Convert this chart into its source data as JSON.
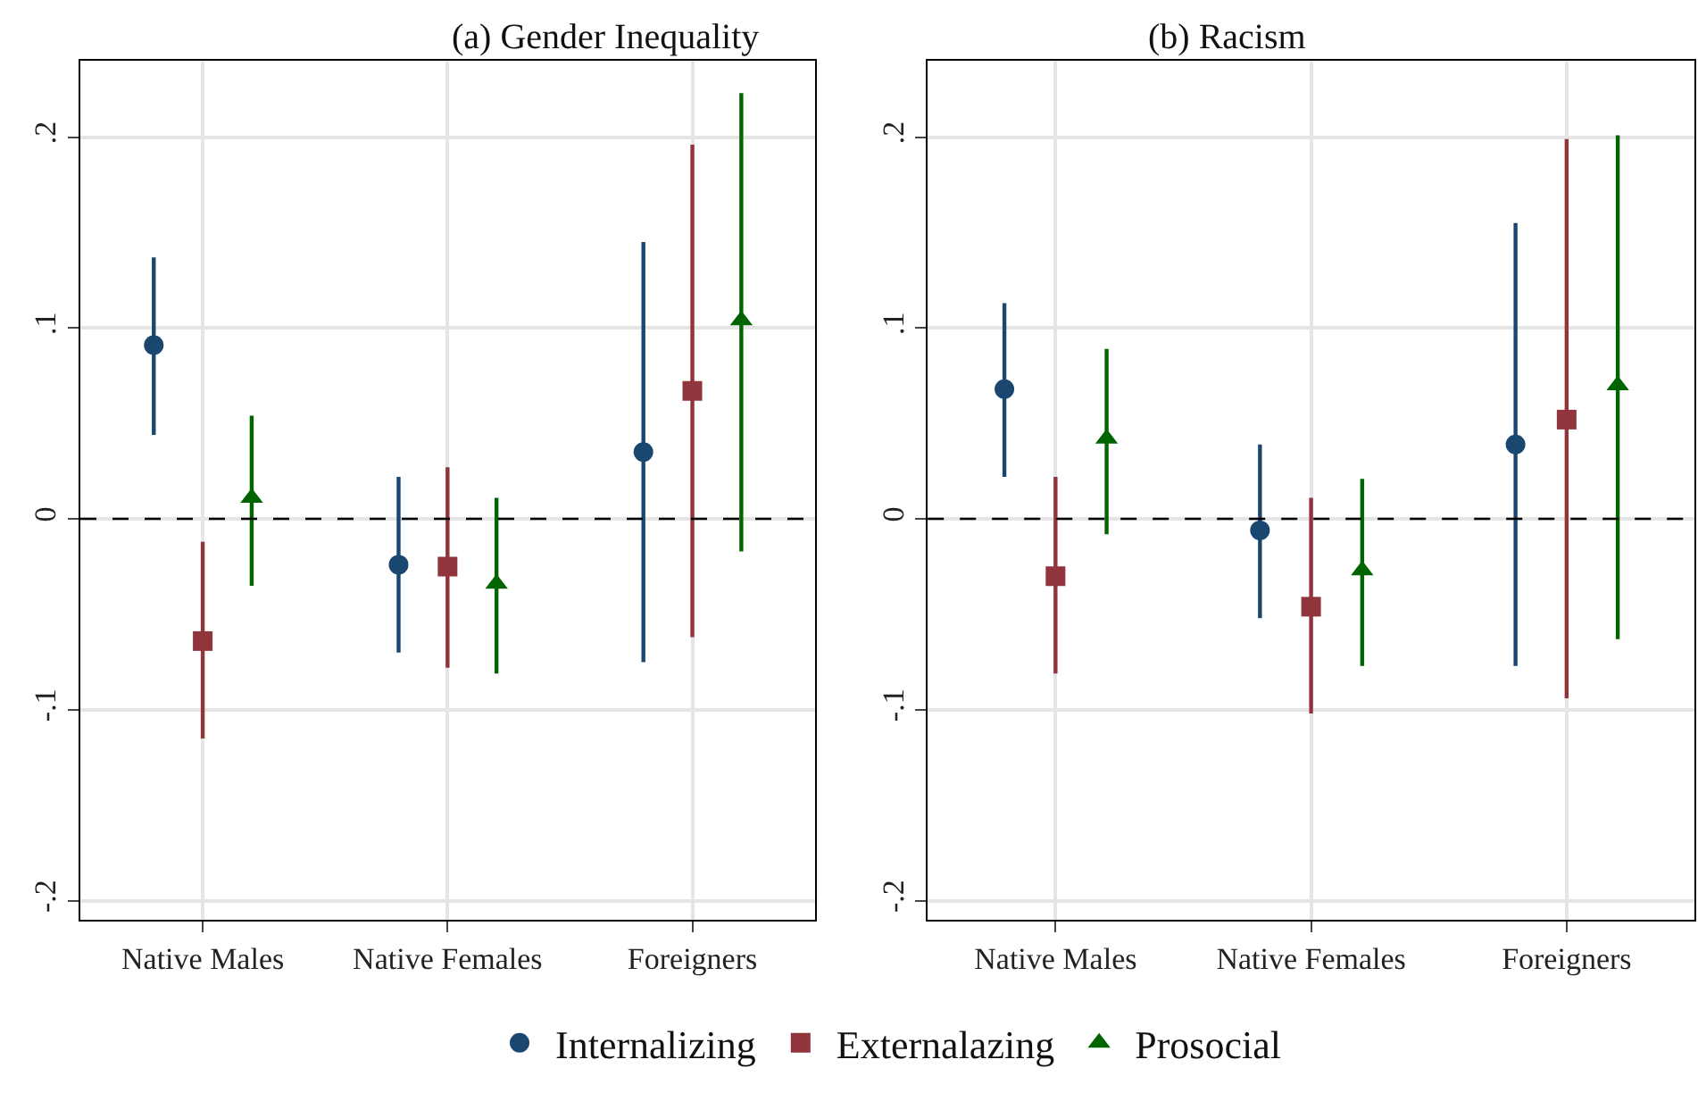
{
  "chart_data": [
    {
      "type": "scatter",
      "title": "(a) Gender Inequality",
      "categories": [
        "Native Males",
        "Native Females",
        "Foreigners"
      ],
      "series": [
        {
          "name": "Internalizing",
          "color": "#1a476f",
          "marker": "circle",
          "values": [
            0.091,
            -0.024,
            0.035
          ],
          "errors": [
            [
              0.044,
              0.137
            ],
            [
              -0.07,
              0.022
            ],
            [
              -0.075,
              0.145
            ]
          ]
        },
        {
          "name": "Externalazing",
          "color": "#90353b",
          "marker": "square",
          "values": [
            -0.064,
            -0.025,
            0.067
          ],
          "errors": [
            [
              -0.115,
              -0.012
            ],
            [
              -0.078,
              0.027
            ],
            [
              -0.062,
              0.196
            ]
          ]
        },
        {
          "name": "Prosocial",
          "color": "#006400",
          "marker": "triangle",
          "values": [
            0.011,
            -0.034,
            0.104
          ],
          "errors": [
            [
              -0.035,
              0.054
            ],
            [
              -0.081,
              0.011
            ],
            [
              -0.017,
              0.223
            ]
          ]
        }
      ],
      "ylim": [
        -0.21,
        0.24
      ],
      "yticks": [
        {
          "value": -0.2,
          "label": "-.2"
        },
        {
          "value": -0.1,
          "label": "-.1"
        },
        0,
        {
          "value": 0.1,
          "label": ".1"
        },
        {
          "value": 0.2,
          "label": ".2"
        }
      ],
      "ref_lines": [
        {
          "axis": "y",
          "value": 0,
          "color": "#000000",
          "line_style": "dashed"
        }
      ],
      "grid": true,
      "legend": "bottom"
    },
    {
      "type": "scatter",
      "title": "(b) Racism",
      "categories": [
        "Native Males",
        "Native Females",
        "Foreigners"
      ],
      "series": [
        {
          "name": "Internalizing",
          "color": "#1a476f",
          "marker": "circle",
          "values": [
            0.068,
            -0.006,
            0.039
          ],
          "errors": [
            [
              0.022,
              0.113
            ],
            [
              -0.052,
              0.039
            ],
            [
              -0.077,
              0.155
            ]
          ]
        },
        {
          "name": "Externalazing",
          "color": "#90353b",
          "marker": "square",
          "values": [
            -0.03,
            -0.046,
            0.052
          ],
          "errors": [
            [
              -0.081,
              0.022
            ],
            [
              -0.102,
              0.011
            ],
            [
              -0.094,
              0.199
            ]
          ]
        },
        {
          "name": "Prosocial",
          "color": "#006400",
          "marker": "triangle",
          "values": [
            0.042,
            -0.027,
            0.07
          ],
          "errors": [
            [
              -0.008,
              0.089
            ],
            [
              -0.077,
              0.021
            ],
            [
              -0.063,
              0.201
            ]
          ]
        }
      ],
      "ylim": [
        -0.21,
        0.24
      ],
      "yticks": [
        {
          "value": -0.2,
          "label": "-.2"
        },
        {
          "value": -0.1,
          "label": "-.1"
        },
        0,
        {
          "value": 0.1,
          "label": ".1"
        },
        {
          "value": 0.2,
          "label": ".2"
        }
      ],
      "ref_lines": [
        {
          "axis": "y",
          "value": 0,
          "color": "#000000",
          "line_style": "dashed"
        }
      ],
      "grid": true,
      "legend": "bottom"
    }
  ]
}
